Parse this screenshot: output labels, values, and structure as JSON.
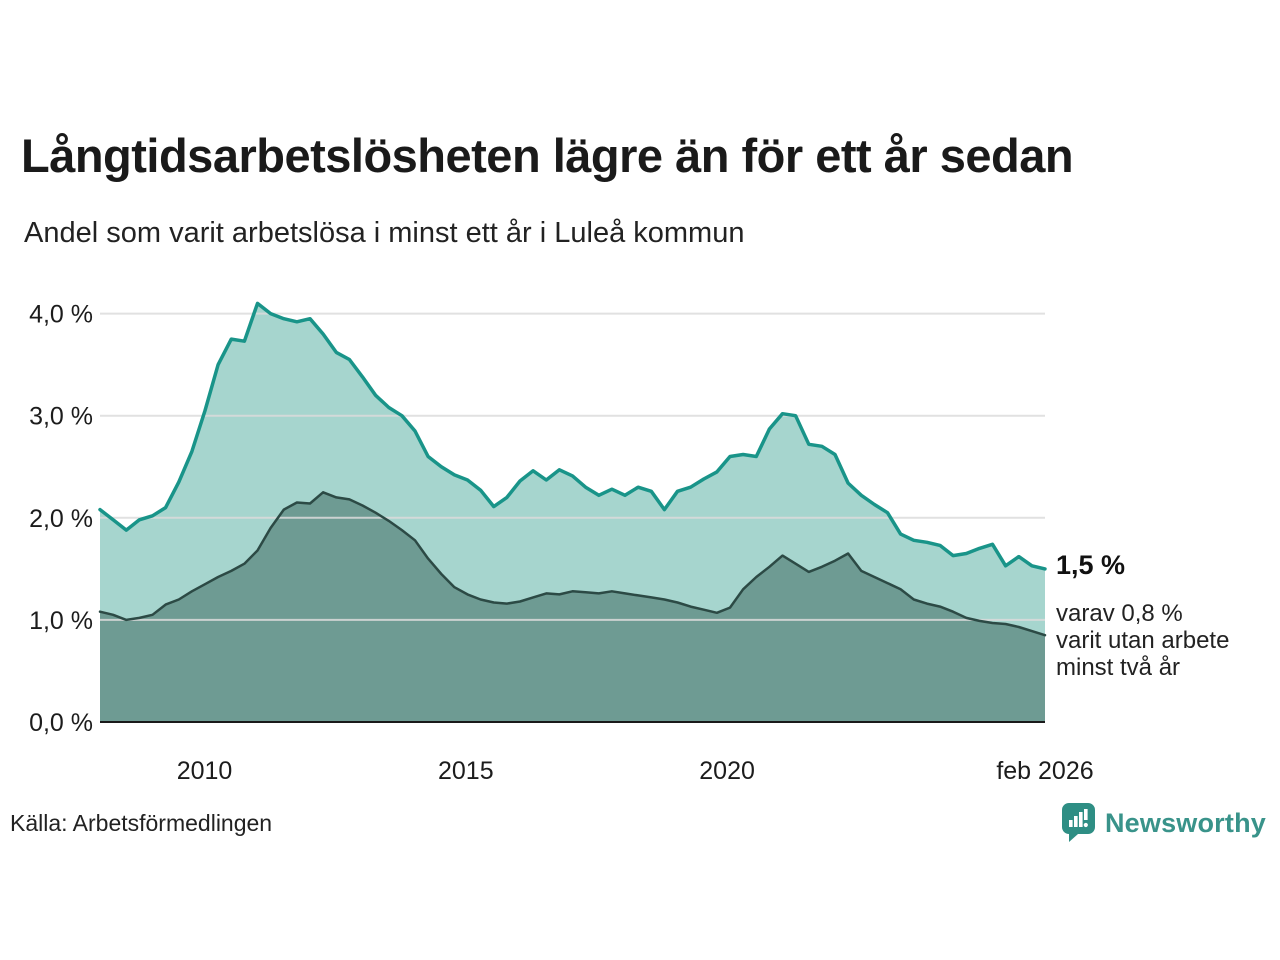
{
  "header": {
    "title": "Långtidsarbetslösheten lägre än för ett år sedan",
    "subtitle": "Andel som varit arbetslösa i minst ett år i Luleå kommun"
  },
  "annotation": {
    "value": "1,5 %",
    "detail": "varav 0,8 %\nvarit utan arbete\nminst två år"
  },
  "footer": {
    "source": "Källa: Arbetsförmedlingen",
    "brand": "Newsworthy"
  },
  "colors": {
    "long_term_line": "#199489",
    "long_term_fill": "#a6d5ce",
    "two_year_line": "#2c4a45",
    "two_year_fill": "#6e9b93",
    "grid": "#dcdcdc",
    "axis": "#1a1a1a",
    "brand_teal": "#2e8e84"
  },
  "chart_data": {
    "type": "area",
    "title": "Långtidsarbetslösheten lägre än för ett år sedan",
    "subtitle": "Andel som varit arbetslösa i minst ett år i Luleå kommun",
    "x_start": 2008.0,
    "x_end": 2026.083,
    "x_interval": "quarterly",
    "ylim": [
      0,
      4.3
    ],
    "grid": "horizontal",
    "legend_position": "none",
    "yticks": [
      {
        "v": 0,
        "label": "0,0 %"
      },
      {
        "v": 1,
        "label": "1,0 %"
      },
      {
        "v": 2,
        "label": "2,0 %"
      },
      {
        "v": 3,
        "label": "3,0 %"
      },
      {
        "v": 4,
        "label": "4,0 %"
      }
    ],
    "xticks": [
      {
        "t": 2010,
        "label": "2010"
      },
      {
        "t": 2015,
        "label": "2015"
      },
      {
        "t": 2020,
        "label": "2020"
      },
      {
        "t": 2026.083,
        "label": "feb 2026"
      }
    ],
    "series": [
      {
        "name": "Andel arbetslösa minst ett år",
        "line_color": "#199489",
        "fill_color": "#a6d5ce",
        "latest_value": 1.5,
        "values": [
          2.08,
          1.98,
          1.88,
          1.98,
          2.02,
          2.1,
          2.35,
          2.65,
          3.05,
          3.5,
          3.75,
          3.73,
          4.1,
          4.0,
          3.95,
          3.92,
          3.95,
          3.8,
          3.62,
          3.55,
          3.38,
          3.2,
          3.08,
          3.0,
          2.85,
          2.6,
          2.5,
          2.42,
          2.37,
          2.27,
          2.11,
          2.2,
          2.36,
          2.46,
          2.37,
          2.47,
          2.41,
          2.3,
          2.22,
          2.28,
          2.22,
          2.3,
          2.26,
          2.08,
          2.26,
          2.3,
          2.38,
          2.45,
          2.6,
          2.62,
          2.6,
          2.87,
          3.02,
          3.0,
          2.72,
          2.7,
          2.62,
          2.34,
          2.22,
          2.13,
          2.05,
          1.84,
          1.78,
          1.76,
          1.73,
          1.63,
          1.65,
          1.7,
          1.74,
          1.53,
          1.62,
          1.53,
          1.5
        ]
      },
      {
        "name": "varav utan arbete minst två år",
        "line_color": "#2c4a45",
        "fill_color": "#6e9b93",
        "latest_value": 0.8,
        "values": [
          1.08,
          1.05,
          1.0,
          1.02,
          1.05,
          1.15,
          1.2,
          1.28,
          1.35,
          1.42,
          1.48,
          1.55,
          1.68,
          1.9,
          2.08,
          2.15,
          2.14,
          2.25,
          2.2,
          2.18,
          2.12,
          2.05,
          1.97,
          1.88,
          1.78,
          1.6,
          1.45,
          1.32,
          1.25,
          1.2,
          1.17,
          1.16,
          1.18,
          1.22,
          1.26,
          1.25,
          1.28,
          1.27,
          1.26,
          1.28,
          1.26,
          1.24,
          1.22,
          1.2,
          1.17,
          1.13,
          1.1,
          1.07,
          1.12,
          1.3,
          1.42,
          1.52,
          1.63,
          1.55,
          1.47,
          1.52,
          1.58,
          1.65,
          1.48,
          1.42,
          1.36,
          1.3,
          1.2,
          1.16,
          1.13,
          1.08,
          1.02,
          0.99,
          0.97,
          0.96,
          0.93,
          0.89,
          0.85
        ]
      }
    ]
  }
}
